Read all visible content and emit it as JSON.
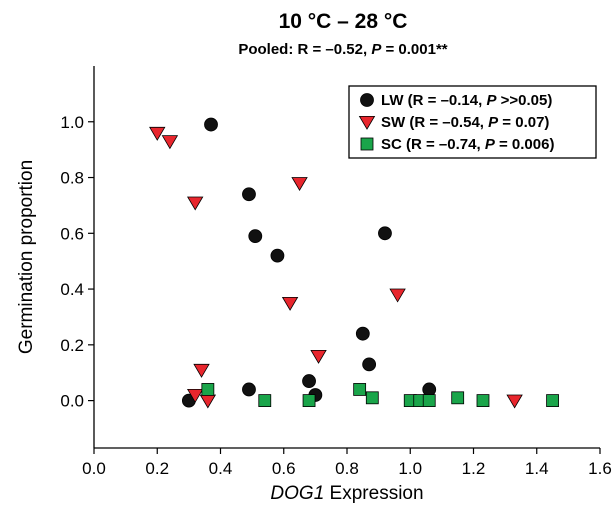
{
  "chart_data": {
    "type": "scatter",
    "title": "10 °C – 28 °C",
    "subtitle": {
      "before": "Pooled: R = –0.52, ",
      "italic": "P",
      "after": " = 0.001**"
    },
    "xlabel": {
      "italic": "DOG1",
      "rest": " Expression"
    },
    "ylabel": "Germination proportion",
    "xlim": [
      0.0,
      1.6
    ],
    "ylim": [
      -0.17,
      1.2
    ],
    "xticks": [
      "0.0",
      "0.2",
      "0.4",
      "0.6",
      "0.8",
      "1.0",
      "1.2",
      "1.4",
      "1.6"
    ],
    "yticks": [
      "0.0",
      "0.2",
      "0.4",
      "0.6",
      "0.8",
      "1.0"
    ],
    "grid": false,
    "legend_position": "top-right",
    "series": [
      {
        "key": "lw",
        "marker": "circle",
        "color": "#111111",
        "legend": {
          "before": "LW (R = –0.14, ",
          "italic": "P",
          "after": " >>0.05)"
        },
        "points": [
          [
            0.3,
            0.0
          ],
          [
            0.37,
            0.99
          ],
          [
            0.49,
            0.74
          ],
          [
            0.49,
            0.04
          ],
          [
            0.51,
            0.59
          ],
          [
            0.58,
            0.52
          ],
          [
            0.68,
            0.07
          ],
          [
            0.7,
            0.02
          ],
          [
            0.85,
            0.24
          ],
          [
            0.87,
            0.13
          ],
          [
            0.92,
            0.6
          ],
          [
            1.06,
            0.04
          ]
        ]
      },
      {
        "key": "sw",
        "marker": "triangle-down",
        "color": "#e8262d",
        "legend": {
          "before": "SW (R = –0.54, ",
          "italic": "P",
          "after": " = 0.07)"
        },
        "points": [
          [
            0.2,
            0.96
          ],
          [
            0.24,
            0.93
          ],
          [
            0.32,
            0.71
          ],
          [
            0.32,
            0.02
          ],
          [
            0.34,
            0.11
          ],
          [
            0.36,
            0.0
          ],
          [
            0.62,
            0.35
          ],
          [
            0.65,
            0.78
          ],
          [
            0.71,
            0.16
          ],
          [
            0.96,
            0.38
          ],
          [
            1.33,
            0.0
          ]
        ]
      },
      {
        "key": "sc",
        "marker": "square",
        "color": "#1aa54a",
        "legend": {
          "before": "SC (R = –0.74, ",
          "italic": "P",
          "after": " = 0.006)"
        },
        "points": [
          [
            0.36,
            0.04
          ],
          [
            0.54,
            0.0
          ],
          [
            0.68,
            0.0
          ],
          [
            0.84,
            0.04
          ],
          [
            0.88,
            0.01
          ],
          [
            1.0,
            0.0
          ],
          [
            1.03,
            0.0
          ],
          [
            1.06,
            0.0
          ],
          [
            1.15,
            0.01
          ],
          [
            1.23,
            0.0
          ],
          [
            1.45,
            0.0
          ]
        ]
      }
    ]
  }
}
